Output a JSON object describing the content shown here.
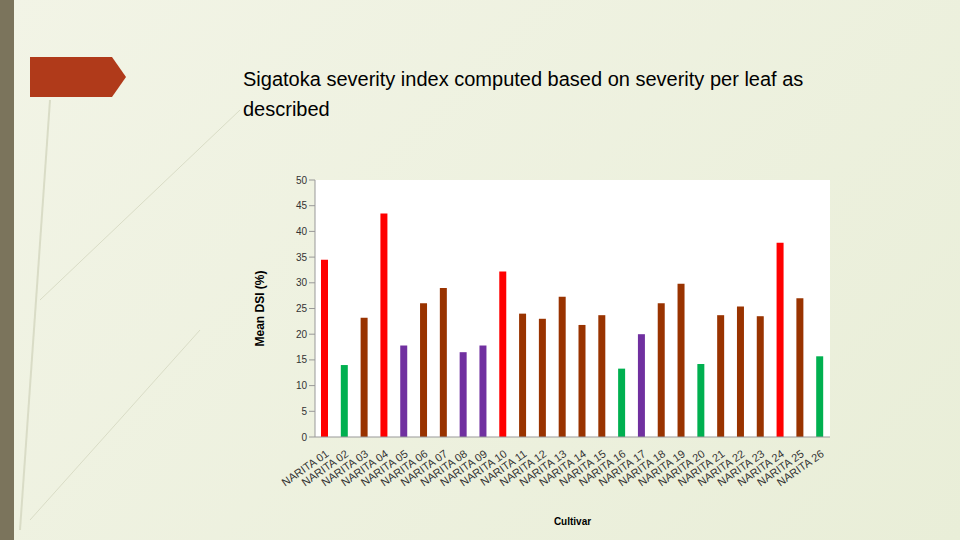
{
  "chart_data": {
    "type": "bar",
    "title": "Sigatoka severity index computed based on severity per leaf as described",
    "y_label": "Mean DSI (%)",
    "x_label": "Cultivar",
    "categories": [
      "NARITA 01",
      "NARITA 02",
      "NARITA 03",
      "NARITA 04",
      "NARITA 05",
      "NARITA 06",
      "NARITA 07",
      "NARITA 08",
      "NARITA 09",
      "NARITA 10",
      "NARITA 11",
      "NARITA 12",
      "NARITA 13",
      "NARITA 14",
      "NARITA 15",
      "NARITA 16",
      "NARITA 17",
      "NARITA 18",
      "NARITA 19",
      "NARITA 20",
      "NARITA 21",
      "NARITA 22",
      "NARITA 23",
      "NARITA 24",
      "NARITA 25",
      "NARITA 26"
    ],
    "values": [
      34.5,
      14,
      23.2,
      43.5,
      17.8,
      26,
      29,
      16.5,
      17.8,
      32.2,
      24,
      23,
      27.3,
      21.8,
      23.7,
      13.3,
      20,
      26,
      29.8,
      14.2,
      23.7,
      25.4,
      23.5,
      37.8,
      27,
      15.7
    ],
    "colors": [
      "#ff0000",
      "#00b050",
      "#993300",
      "#ff0000",
      "#7030a0",
      "#993300",
      "#993300",
      "#7030a0",
      "#7030a0",
      "#ff0000",
      "#993300",
      "#993300",
      "#993300",
      "#993300",
      "#993300",
      "#00b050",
      "#7030a0",
      "#993300",
      "#993300",
      "#00b050",
      "#993300",
      "#993300",
      "#993300",
      "#ff0000",
      "#993300",
      "#00b050"
    ],
    "ylim": [
      0,
      50
    ],
    "yticks": [
      0,
      5,
      10,
      15,
      20,
      25,
      30,
      35,
      40,
      45,
      50
    ],
    "grid": false
  }
}
